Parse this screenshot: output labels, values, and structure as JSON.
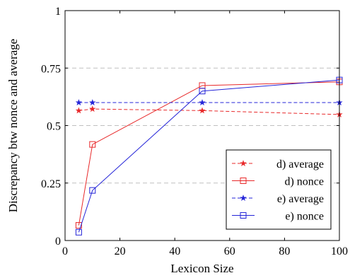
{
  "chart_data": {
    "type": "line",
    "xlabel": "Lexicon Size",
    "ylabel": "Discrepancy btw nonce and average",
    "xlim": [
      0,
      100
    ],
    "ylim": [
      0,
      1
    ],
    "x_ticks": [
      0,
      20,
      40,
      60,
      80,
      100
    ],
    "y_ticks": [
      0,
      0.25,
      0.5,
      0.75,
      1
    ],
    "x_tick_labels": [
      "0",
      "20",
      "40",
      "60",
      "80",
      "100"
    ],
    "y_tick_labels": [
      "0",
      "0.25",
      "0.5",
      "0.75",
      "1"
    ],
    "grid": "horizontal dashed at 0.25, 0.5, 0.75",
    "legend_position": "bottom-right",
    "series": [
      {
        "name": "d) average",
        "color": "#e8292a",
        "line_style": "dashed",
        "marker": "star",
        "x": [
          5,
          10,
          50,
          100
        ],
        "y": [
          0.565,
          0.572,
          0.565,
          0.548
        ]
      },
      {
        "name": "d) nonce",
        "color": "#e8292a",
        "line_style": "solid",
        "marker": "square",
        "x": [
          5,
          10,
          50,
          100
        ],
        "y": [
          0.066,
          0.418,
          0.674,
          0.69
        ]
      },
      {
        "name": "e) average",
        "color": "#2424d8",
        "line_style": "dashed",
        "marker": "star",
        "x": [
          5,
          10,
          50,
          100
        ],
        "y": [
          0.6,
          0.6,
          0.6,
          0.6
        ]
      },
      {
        "name": "e) nonce",
        "color": "#2424d8",
        "line_style": "solid",
        "marker": "square",
        "x": [
          5,
          10,
          50,
          100
        ],
        "y": [
          0.036,
          0.218,
          0.65,
          0.698
        ]
      }
    ]
  }
}
